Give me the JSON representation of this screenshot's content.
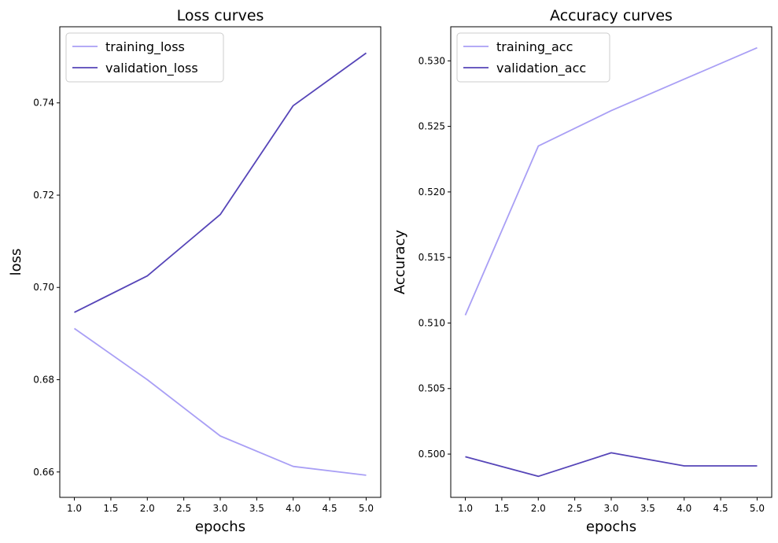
{
  "series_colors": {
    "training": "#a99ff5",
    "validation": "#5645b8"
  },
  "chart_data": [
    {
      "type": "line",
      "title": "Loss curves",
      "xlabel": "epochs",
      "ylabel": "loss",
      "x": [
        1,
        2,
        3,
        4,
        5
      ],
      "xlim": [
        0.8,
        5.2
      ],
      "ylim": [
        0.6545,
        0.7565
      ],
      "xticks": [
        1.0,
        1.5,
        2.0,
        2.5,
        3.0,
        3.5,
        4.0,
        4.5,
        5.0
      ],
      "xtick_labels": [
        "1.0",
        "1.5",
        "2.0",
        "2.5",
        "3.0",
        "3.5",
        "4.0",
        "4.5",
        "5.0"
      ],
      "yticks": [
        0.66,
        0.68,
        0.7,
        0.72,
        0.74
      ],
      "ytick_labels": [
        "0.66",
        "0.68",
        "0.70",
        "0.72",
        "0.74"
      ],
      "legend_position": "top-left",
      "grid": false,
      "series": [
        {
          "name": "training_loss",
          "color": "#a99ff5",
          "values": [
            0.6911,
            0.68,
            0.6678,
            0.6612,
            0.6593
          ]
        },
        {
          "name": "validation_loss",
          "color": "#5645b8",
          "values": [
            0.6946,
            0.7025,
            0.7158,
            0.7394,
            0.7508
          ]
        }
      ]
    },
    {
      "type": "line",
      "title": "Accuracy curves",
      "xlabel": "epochs",
      "ylabel": "Accuracy",
      "x": [
        1,
        2,
        3,
        4,
        5
      ],
      "xlim": [
        0.8,
        5.2
      ],
      "ylim": [
        0.4967,
        0.5326
      ],
      "xticks": [
        1.0,
        1.5,
        2.0,
        2.5,
        3.0,
        3.5,
        4.0,
        4.5,
        5.0
      ],
      "xtick_labels": [
        "1.0",
        "1.5",
        "2.0",
        "2.5",
        "3.0",
        "3.5",
        "4.0",
        "4.5",
        "5.0"
      ],
      "yticks": [
        0.5,
        0.505,
        0.51,
        0.515,
        0.52,
        0.525,
        0.53
      ],
      "ytick_labels": [
        "0.500",
        "0.505",
        "0.510",
        "0.515",
        "0.520",
        "0.525",
        "0.530"
      ],
      "legend_position": "top-left",
      "grid": false,
      "series": [
        {
          "name": "training_acc",
          "color": "#a99ff5",
          "values": [
            0.5106,
            0.5235,
            0.5262,
            0.5286,
            0.531
          ]
        },
        {
          "name": "validation_acc",
          "color": "#5645b8",
          "values": [
            0.4998,
            0.4983,
            0.5001,
            0.4991,
            0.4991
          ]
        }
      ]
    }
  ]
}
